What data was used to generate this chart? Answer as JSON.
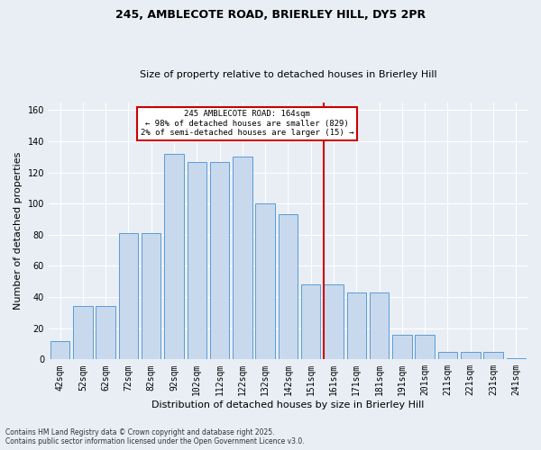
{
  "title1": "245, AMBLECOTE ROAD, BRIERLEY HILL, DY5 2PR",
  "title2": "Size of property relative to detached houses in Brierley Hill",
  "xlabel": "Distribution of detached houses by size in Brierley Hill",
  "ylabel": "Number of detached properties",
  "categories": [
    "42sqm",
    "52sqm",
    "62sqm",
    "72sqm",
    "82sqm",
    "92sqm",
    "102sqm",
    "112sqm",
    "122sqm",
    "132sqm",
    "142sqm",
    "151sqm",
    "161sqm",
    "171sqm",
    "181sqm",
    "191sqm",
    "201sqm",
    "211sqm",
    "221sqm",
    "231sqm",
    "241sqm"
  ],
  "values": [
    12,
    34,
    34,
    81,
    81,
    132,
    127,
    127,
    130,
    100,
    93,
    48,
    48,
    43,
    43,
    16,
    16,
    5,
    5,
    5,
    1
  ],
  "bar_color": "#c8d9ee",
  "bar_edge_color": "#5b9bd5",
  "red_line_index": 12,
  "annotation_text": "245 AMBLECOTE ROAD: 164sqm\n← 98% of detached houses are smaller (829)\n2% of semi-detached houses are larger (15) →",
  "annotation_color": "#cc0000",
  "background_color": "#e8eef4",
  "ylim": [
    0,
    165
  ],
  "yticks": [
    0,
    20,
    40,
    60,
    80,
    100,
    120,
    140,
    160
  ],
  "footer1": "Contains HM Land Registry data © Crown copyright and database right 2025.",
  "footer2": "Contains public sector information licensed under the Open Government Licence v3.0.",
  "title_fontsize": 9,
  "subtitle_fontsize": 8,
  "ylabel_fontsize": 8,
  "xlabel_fontsize": 8,
  "tick_fontsize": 7
}
